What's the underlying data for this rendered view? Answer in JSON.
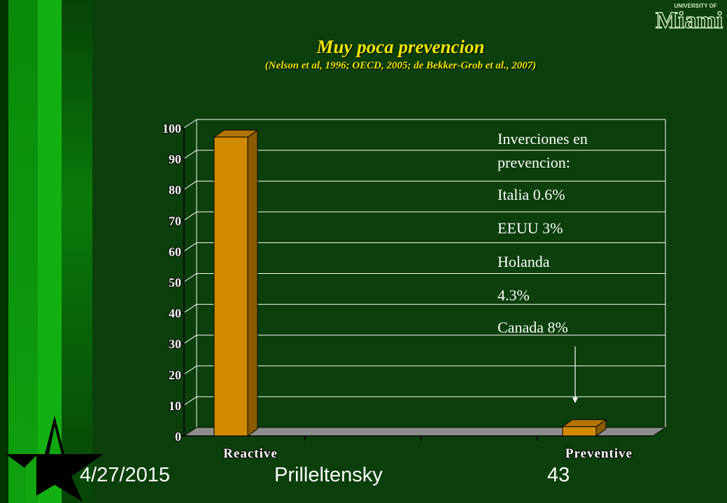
{
  "slide": {
    "date": "4/27/2015",
    "author": "Prilleltensky",
    "page_number": "43",
    "logo": {
      "top_text": "UNIVERSITY OF",
      "main_text": "Miami"
    }
  },
  "colors": {
    "background": "#0b3f0b",
    "title": "#f2e600",
    "bar_front": "#d18a00",
    "bar_side": "#8a5a00",
    "bar_top": "#b47400",
    "floor": "#8e8e8e",
    "grid": "#ffffff"
  },
  "annotation": {
    "lines": [
      "Inverciones en",
      "prevencion:",
      "Italia 0.6%",
      "EEUU 3%",
      "Holanda",
      "4.3%",
      "Canada 8%"
    ]
  },
  "chart_data": {
    "type": "bar",
    "title": "Muy poca prevencion",
    "subtitle": "(Nelson et al, 1996; OECD, 2005; de Bekker-Grob et al., 2007)",
    "categories": [
      "Reactive",
      "Preventive"
    ],
    "values": [
      97,
      3
    ],
    "ylim": [
      0,
      100
    ],
    "yticks": [
      0,
      10,
      20,
      30,
      40,
      50,
      60,
      70,
      80,
      90,
      100
    ],
    "grid": true,
    "legend": "none"
  }
}
